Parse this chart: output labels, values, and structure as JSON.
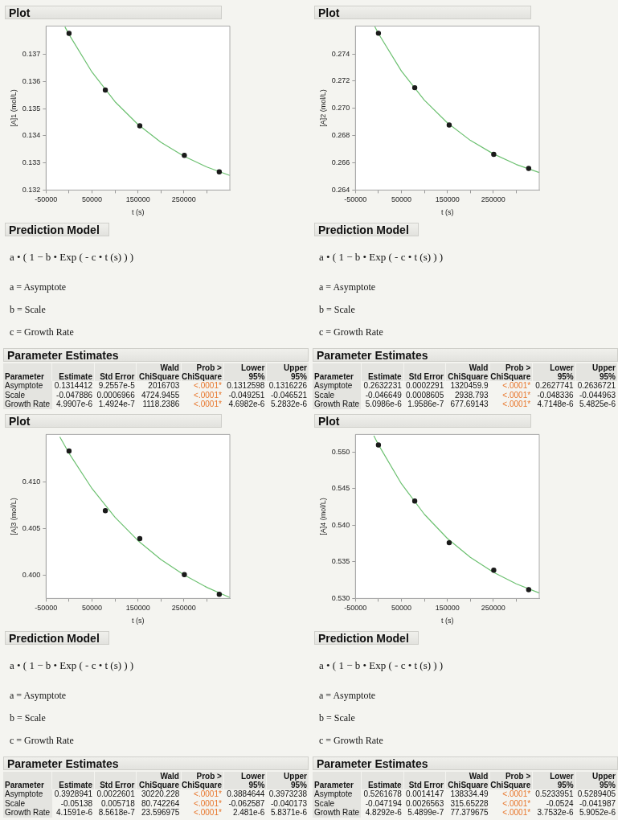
{
  "chart_data": [
    {
      "type": "scatter",
      "title": "Plot",
      "xlabel": "t (s)",
      "ylabel": "[A]1 (mol/L)",
      "xlim": [
        -50000,
        350000
      ],
      "xticks": [
        -50000,
        {
          "value": 0,
          "label": null
        },
        50000,
        {
          "value": 100000,
          "label": null
        },
        150000,
        {
          "value": 200000,
          "label": null
        },
        250000,
        {
          "value": 300000,
          "label": null
        }
      ],
      "ylim": [
        0.132,
        0.13805
      ],
      "yticks": [
        0.132,
        0.133,
        0.134,
        0.135,
        0.136,
        0.137
      ],
      "marker": "circle",
      "series": [
        {
          "type": "scatter",
          "color": "#1a1a1a",
          "x": [
            0,
            79000,
            154000,
            251000,
            327000
          ],
          "values": [
            0.13778,
            0.13569,
            0.13437,
            0.13328,
            0.13267
          ]
        },
        {
          "type": "line",
          "color": "#6cc070",
          "marker": "none",
          "x": [
            -9000,
            0,
            50000,
            100000,
            150000,
            200000,
            250000,
            300000,
            350000
          ],
          "values": [
            0.13802,
            0.13774,
            0.13635,
            0.13526,
            0.13442,
            0.13376,
            0.13325,
            0.13285,
            0.13254
          ]
        }
      ]
    },
    {
      "type": "scatter",
      "title": "Plot",
      "xlabel": "t (s)",
      "ylabel": "[A]2 (mol/L)",
      "xlim": [
        -50000,
        350000
      ],
      "xticks": [
        -50000,
        {
          "value": 0,
          "label": null
        },
        50000,
        {
          "value": 100000,
          "label": null
        },
        150000,
        {
          "value": 200000,
          "label": null
        },
        250000,
        {
          "value": 300000,
          "label": null
        }
      ],
      "ylim": [
        0.264,
        0.27605
      ],
      "yticks": [
        0.264,
        0.266,
        0.268,
        {
          "value": 0.27,
          "label": "0.270"
        },
        0.272,
        0.274
      ],
      "marker": "circle",
      "series": [
        {
          "type": "scatter",
          "color": "#1a1a1a",
          "x": [
            0,
            79000,
            154000,
            251000,
            327000
          ],
          "values": [
            0.27552,
            0.27152,
            0.26878,
            0.26662,
            0.26559
          ]
        },
        {
          "type": "line",
          "color": "#6cc070",
          "marker": "none",
          "x": [
            -8000,
            0,
            50000,
            100000,
            150000,
            200000,
            250000,
            300000,
            350000
          ],
          "values": [
            0.27601,
            0.2755,
            0.27274,
            0.2706,
            0.26894,
            0.26765,
            0.26666,
            0.26588,
            0.26529
          ]
        }
      ]
    },
    {
      "type": "other",
      "title": "Prediction Model",
      "annotations": [
        "a • ( 1 − b • Exp ( - c • t (s) ) )",
        "a = Asymptote",
        "b = Scale",
        "c = Growth Rate"
      ]
    },
    {
      "type": "other",
      "title": "Prediction Model",
      "annotations": [
        "a • ( 1 − b • Exp ( - c • t (s) ) )",
        "a = Asymptote",
        "b = Scale",
        "c = Growth Rate"
      ]
    },
    {
      "type": "other",
      "title": "Parameter Estimates",
      "categories": [
        "Parameter",
        "Estimate",
        "Std Error",
        "Wald\nChiSquare",
        "Prob >\nChiSquare",
        "Lower 95%",
        "Upper 95%"
      ],
      "y_categories": [
        "Asymptote",
        "Scale",
        "Growth Rate"
      ],
      "cell_labels": [
        [
          "0.1314412",
          "9.2557e-5",
          "2016703",
          "<.0001*",
          "0.1312598",
          "0.1316226"
        ],
        [
          "-0.047886",
          "0.0006966",
          "4724.9455",
          "<.0001*",
          "-0.049251",
          "-0.046521"
        ],
        [
          "4.9907e-6",
          "1.4924e-7",
          "1118.2386",
          "<.0001*",
          "4.6982e-6",
          "5.2832e-6"
        ]
      ]
    },
    {
      "type": "other",
      "title": "Parameter Estimates",
      "categories": [
        "Parameter",
        "Estimate",
        "Std Error",
        "Wald\nChiSquare",
        "Prob >\nChiSquare",
        "Lower 95%",
        "Upper 95%"
      ],
      "y_categories": [
        "Asymptote",
        "Scale",
        "Growth Rate"
      ],
      "cell_labels": [
        [
          "0.2632231",
          "0.0002291",
          "1320459.9",
          "<.0001*",
          "0.2627741",
          "0.2636721"
        ],
        [
          "-0.046649",
          "0.0008605",
          "2938.793",
          "<.0001*",
          "-0.048336",
          "-0.044963"
        ],
        [
          "5.0986e-6",
          "1.9586e-7",
          "677.69143",
          "<.0001*",
          "4.7148e-6",
          "5.4825e-6"
        ]
      ]
    },
    {
      "type": "scatter",
      "title": "Plot",
      "xlabel": "t (s)",
      "ylabel": "[A]3 (mol/L)",
      "xlim": [
        -50000,
        350000
      ],
      "xticks": [
        -50000,
        {
          "value": 0,
          "label": null
        },
        50000,
        {
          "value": 100000,
          "label": null
        },
        150000,
        {
          "value": 200000,
          "label": null
        },
        250000,
        {
          "value": 300000,
          "label": null
        }
      ],
      "ylim": [
        0.3975,
        0.4151
      ],
      "yticks": [
        {
          "value": 0.4,
          "label": "0.400"
        },
        0.405,
        {
          "value": 0.41,
          "label": "0.410"
        }
      ],
      "marker": "circle",
      "series": [
        {
          "type": "scatter",
          "color": "#1a1a1a",
          "x": [
            0,
            79000,
            154000,
            251000,
            327000
          ],
          "values": [
            0.41333,
            0.40692,
            0.40392,
            0.40006,
            0.39794
          ]
        },
        {
          "type": "line",
          "color": "#6cc070",
          "marker": "none",
          "x": [
            -20000,
            0,
            50000,
            100000,
            150000,
            200000,
            250000,
            300000,
            350000
          ],
          "values": [
            0.41483,
            0.41308,
            0.40929,
            0.40621,
            0.40371,
            0.40168,
            0.40003,
            0.39869,
            0.3976
          ]
        }
      ]
    },
    {
      "type": "scatter",
      "title": "Plot",
      "xlabel": "t (s)",
      "ylabel": "[A]4 (mol/L)",
      "xlim": [
        -50000,
        350000
      ],
      "xticks": [
        -50000,
        {
          "value": 0,
          "label": null
        },
        50000,
        {
          "value": 100000,
          "label": null
        },
        150000,
        {
          "value": 200000,
          "label": null
        },
        250000,
        {
          "value": 300000,
          "label": null
        }
      ],
      "ylim": [
        0.53,
        0.5524
      ],
      "yticks": [
        {
          "value": 0.53,
          "label": "0.530"
        },
        0.535,
        {
          "value": 0.54,
          "label": "0.540"
        },
        0.545,
        {
          "value": 0.55,
          "label": "0.550"
        }
      ],
      "marker": "circle",
      "series": [
        {
          "type": "scatter",
          "color": "#1a1a1a",
          "x": [
            0,
            79000,
            154000,
            251000,
            327000
          ],
          "values": [
            0.55096,
            0.54331,
            0.53761,
            0.53386,
            0.5312
          ]
        },
        {
          "type": "line",
          "color": "#6cc070",
          "marker": "none",
          "x": [
            -10000,
            0,
            50000,
            100000,
            150000,
            200000,
            250000,
            300000,
            350000
          ],
          "values": [
            0.55223,
            0.551,
            0.54567,
            0.54149,
            0.5382,
            0.53562,
            0.53359,
            0.532,
            0.53075
          ]
        }
      ]
    },
    {
      "type": "other",
      "title": "Prediction Model",
      "annotations": [
        "a • ( 1 − b • Exp ( - c • t (s) ) )",
        "a = Asymptote",
        "b = Scale",
        "c = Growth Rate"
      ]
    },
    {
      "type": "other",
      "title": "Prediction Model",
      "annotations": [
        "a • ( 1 − b • Exp ( - c • t (s) ) )",
        "a = Asymptote",
        "b = Scale",
        "c = Growth Rate"
      ]
    },
    {
      "type": "other",
      "title": "Parameter Estimates",
      "categories": [
        "Parameter",
        "Estimate",
        "Std Error",
        "Wald\nChiSquare",
        "Prob >\nChiSquare",
        "Lower 95%",
        "Upper 95%"
      ],
      "y_categories": [
        "Asymptote",
        "Scale",
        "Growth Rate"
      ],
      "cell_labels": [
        [
          "0.3928941",
          "0.0022601",
          "30220.228",
          "<.0001*",
          "0.3884644",
          "0.3973238"
        ],
        [
          "-0.05138",
          "0.005718",
          "80.742264",
          "<.0001*",
          "-0.062587",
          "-0.040173"
        ],
        [
          "4.1591e-6",
          "8.5618e-7",
          "23.596975",
          "<.0001*",
          "2.481e-6",
          "5.8371e-6"
        ]
      ]
    },
    {
      "type": "other",
      "title": "Parameter Estimates",
      "categories": [
        "Parameter",
        "Estimate",
        "Std Error",
        "Wald\nChiSquare",
        "Prob >\nChiSquare",
        "Lower 95%",
        "Upper 95%"
      ],
      "y_categories": [
        "Asymptote",
        "Scale",
        "Growth Rate"
      ],
      "cell_labels": [
        [
          "0.5261678",
          "0.0014147",
          "138334.49",
          "<.0001*",
          "0.5233951",
          "0.5289405"
        ],
        [
          "-0.047194",
          "0.0026563",
          "315.65228",
          "<.0001*",
          "-0.0524",
          "-0.041987"
        ],
        [
          "4.8292e-6",
          "5.4899e-7",
          "77.379675",
          "<.0001*",
          "3.7532e-6",
          "5.9052e-6"
        ]
      ]
    }
  ]
}
